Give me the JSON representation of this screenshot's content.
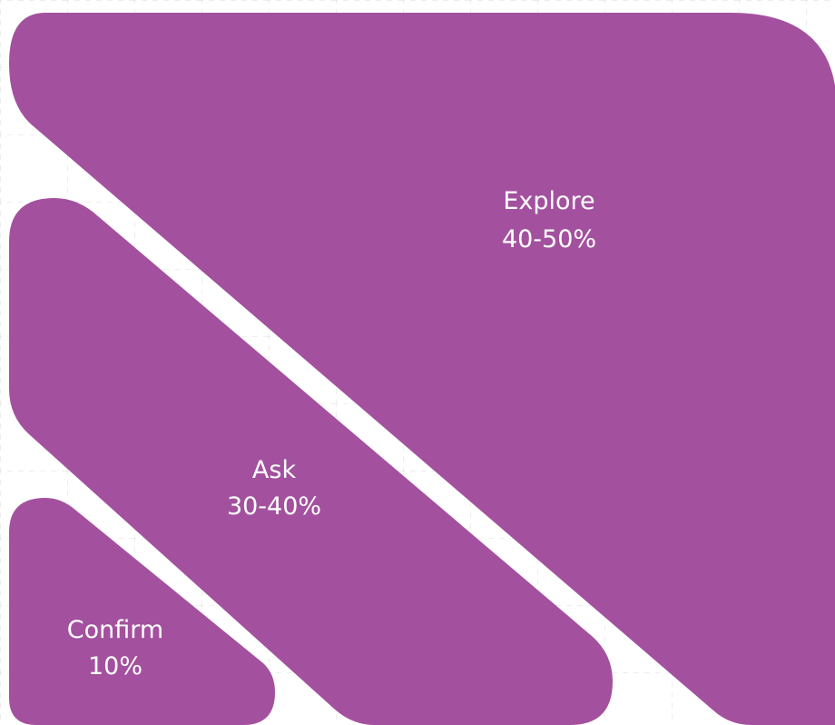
{
  "colors": {
    "background": "#ffffff",
    "grid": "#dcdcdc",
    "shape_fill": "#a3519e",
    "label": "#ffffff"
  },
  "shapes": {
    "explore": {
      "name": "Explore",
      "value": "40-50%"
    },
    "ask": {
      "name": "Ask",
      "value": "30-40%"
    },
    "confirm": {
      "name": "Confirm",
      "value": "10%"
    }
  }
}
